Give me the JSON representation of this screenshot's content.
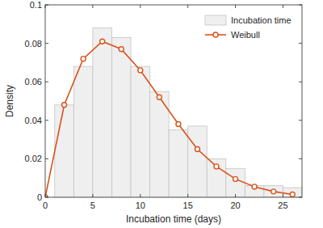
{
  "chart_data": {
    "type": "histogram",
    "xlabel": "Incubation time (days)",
    "ylabel": "Density",
    "xlim": [
      0,
      27
    ],
    "xticks": [
      0,
      5,
      10,
      15,
      20,
      25
    ],
    "ylim": [
      0,
      0.1
    ],
    "yticks": [
      0,
      0.02,
      0.04,
      0.06,
      0.08,
      0.1
    ],
    "legend": "northeast",
    "grid": false,
    "series": [
      {
        "name": "Incubation time",
        "type": "bar",
        "color": "#efefef",
        "bins": [
          1,
          3,
          5,
          7,
          9,
          11,
          13,
          15,
          17,
          19,
          21,
          23,
          25,
          27
        ],
        "values": [
          0.048,
          0.068,
          0.088,
          0.083,
          0.068,
          0.055,
          0.035,
          0.037,
          0.02,
          0.015,
          0.006,
          0.006,
          0.005
        ]
      },
      {
        "name": "Weibull",
        "type": "line",
        "color": "#d95319",
        "marker": "circle",
        "line_style": "solid",
        "x": [
          0,
          2,
          4,
          6,
          8,
          10,
          12,
          14,
          16,
          18,
          20,
          22,
          24,
          26
        ],
        "values": [
          0,
          0.048,
          0.072,
          0.081,
          0.077,
          0.066,
          0.052,
          0.038,
          0.025,
          0.016,
          0.0095,
          0.0055,
          0.003,
          0.0015
        ]
      }
    ]
  }
}
